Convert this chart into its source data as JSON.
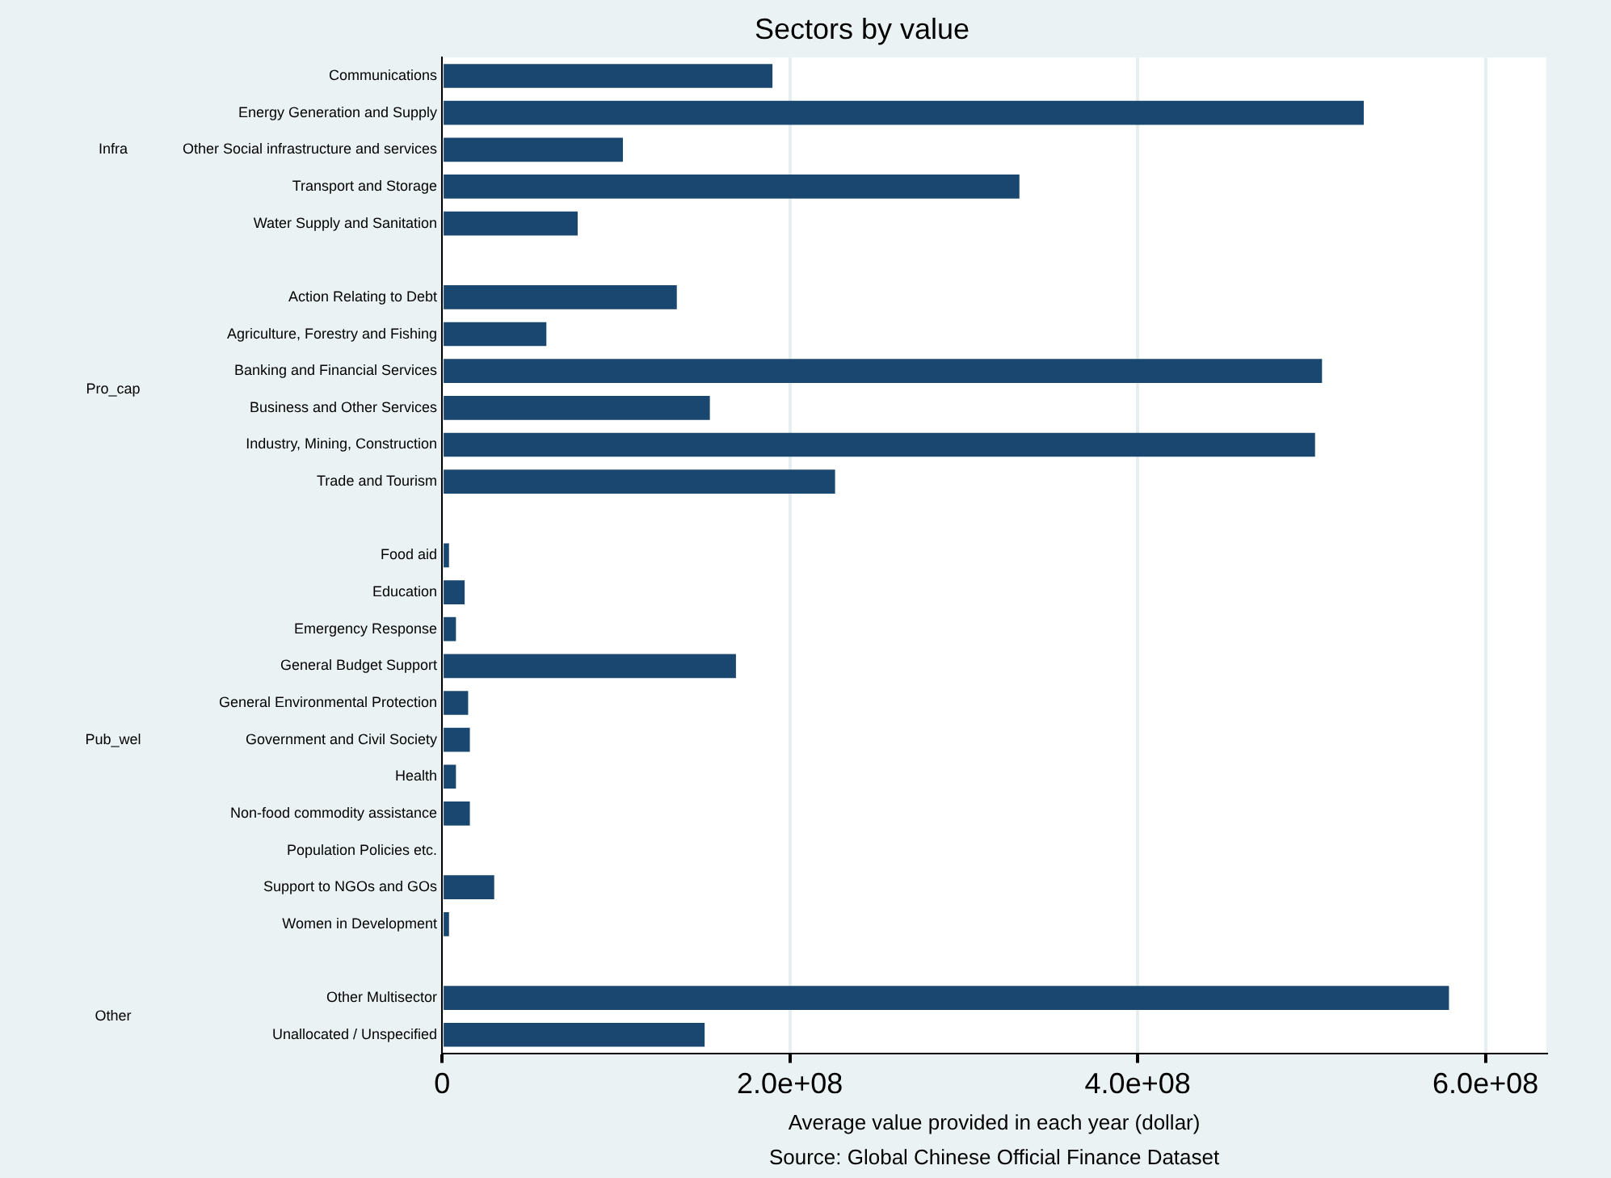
{
  "chart_data": {
    "type": "bar",
    "orientation": "horizontal",
    "title": "Sectors by value",
    "xlabel": "Average value provided in each year (dollar)",
    "categories": [
      "Communications",
      "Energy Generation and Supply",
      "Other Social infrastructure and services",
      "Transport and Storage",
      "Water Supply and Sanitation",
      null,
      "Action Relating to Debt",
      "Agriculture, Forestry and Fishing",
      "Banking and Financial Services",
      "Business and Other Services",
      "Industry, Mining, Construction",
      "Trade and Tourism",
      null,
      "Food aid",
      "Education",
      "Emergency Response",
      "General Budget Support",
      "General Environmental Protection",
      "Government and Civil Society",
      "Health",
      "Non-food commodity assistance",
      "Population Policies etc.",
      "Support to NGOs and GOs",
      "Women in Development",
      null,
      "Other Multisector",
      "Unallocated / Unspecified"
    ],
    "values": [
      190000000,
      530000000,
      104000000,
      332000000,
      78000000,
      null,
      135000000,
      60000000,
      506000000,
      154000000,
      502000000,
      226000000,
      null,
      4000000,
      13000000,
      8000000,
      169000000,
      15000000,
      16000000,
      8000000,
      16000000,
      0,
      30000000,
      4000000,
      null,
      579000000,
      151000000
    ],
    "color": "#1a476f",
    "xlim": [
      0,
      635000000
    ],
    "xticks": [
      0,
      {
        "value": 200000000,
        "label": "2.0e+08"
      },
      {
        "value": 400000000,
        "label": "4.0e+08"
      },
      {
        "value": 600000000,
        "label": "6.0e+08"
      }
    ],
    "grid": "x",
    "legend": false,
    "annotations": [
      "Infra",
      "Pro_cap",
      "Pub_wel",
      "Other",
      "Source: Global Chinese Official Finance Dataset"
    ]
  }
}
